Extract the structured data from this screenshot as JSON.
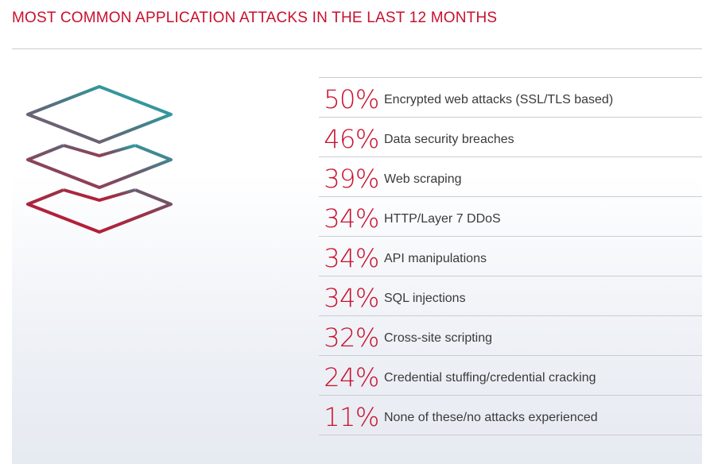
{
  "title": "MOST COMMON APPLICATION ATTACKS IN THE LAST 12 MONTHS",
  "icon": "layers-icon",
  "colors": {
    "accent": "#c8102e",
    "teal": "#1cb5b5",
    "text": "#3a3a3a"
  },
  "attacks": [
    {
      "percent": "50%",
      "label": "Encrypted web attacks (SSL/TLS based)"
    },
    {
      "percent": "46%",
      "label": "Data security breaches"
    },
    {
      "percent": "39%",
      "label": "Web scraping"
    },
    {
      "percent": "34%",
      "label": "HTTP/Layer 7 DDoS"
    },
    {
      "percent": "34%",
      "label": "API manipulations"
    },
    {
      "percent": "34%",
      "label": "SQL injections"
    },
    {
      "percent": "32%",
      "label": "Cross-site scripting"
    },
    {
      "percent": "24%",
      "label": "Credential stuffing/credential cracking"
    },
    {
      "percent": "11%",
      "label": "None of these/no attacks experienced"
    }
  ]
}
